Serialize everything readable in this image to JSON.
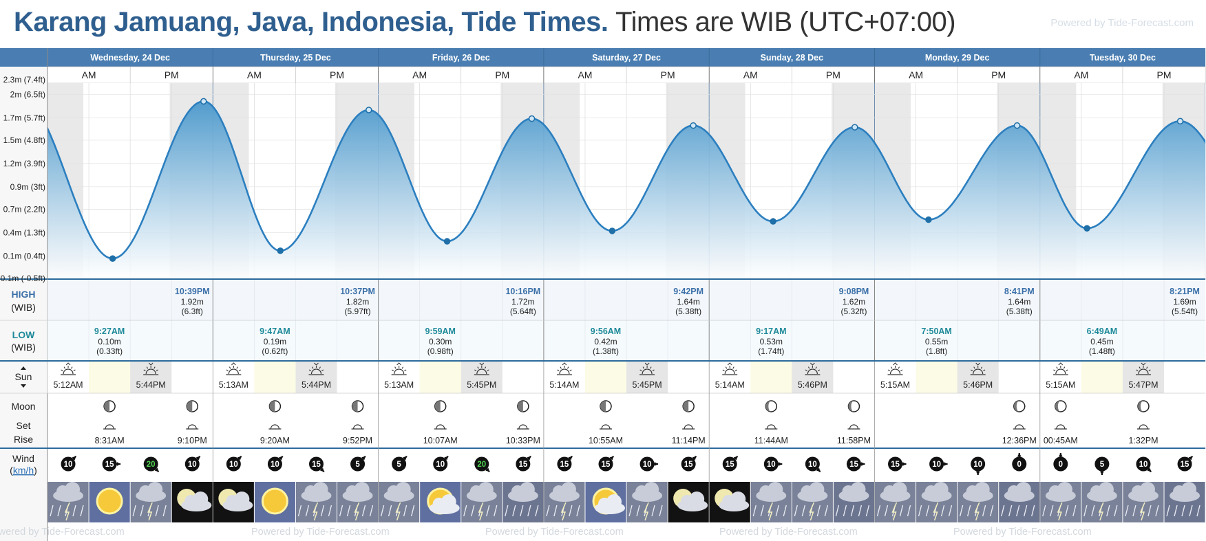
{
  "title": {
    "location": "Karang Jamuang, Java, Indonesia, Tide Times.",
    "timezone_note": "Times are WIB (UTC+07:00)",
    "powered_by": "Powered by Tide-Forecast.com"
  },
  "colors": {
    "header_blue": "#4a7eb2",
    "tide_line": "#2c7fbf",
    "tide_fill_top": "#4a98cc",
    "tide_fill_bottom": "#ffffff",
    "high_label": "#3a6fa8",
    "low_label": "#1e8a99",
    "night_band": "#e9e9e9",
    "sun_band": "#fcfbe5"
  },
  "labels": {
    "am": "AM",
    "pm": "PM",
    "high": "HIGH",
    "low": "LOW",
    "tz": "(WIB)",
    "sun": "Sun",
    "moon": "Moon",
    "set": "Set",
    "rise": "Rise",
    "wind": "Wind",
    "wind_unit": "km/h"
  },
  "chart_data": {
    "type": "area",
    "ylabel": "",
    "y_ticks": [
      "2m (6.5ft)",
      "1.7m (5.7ft)",
      "1.5m (4.8ft)",
      "1.2m (3.9ft)",
      "0.9m (3ft)",
      "0.7m (2.2ft)",
      "0.4m (1.3ft)",
      "0.1m (0.4ft)",
      "-0.1m (-0.5ft)"
    ],
    "y_tick_values": [
      2.0,
      1.73,
      1.47,
      1.2,
      0.93,
      0.67,
      0.4,
      0.13,
      -0.13
    ],
    "ylim": [
      -0.13,
      2.13
    ],
    "days": [
      "Wednesday, 24 Dec",
      "Thursday, 25 Dec",
      "Friday, 26 Dec",
      "Saturday, 27 Dec",
      "Sunday, 28 Dec",
      "Monday, 29 Dec",
      "Tuesday, 30 Dec"
    ],
    "extremes": [
      {
        "day": 0,
        "type": "low",
        "time": "9:27AM",
        "m": "0.10m",
        "ft": "(0.33ft)",
        "height": 0.1,
        "hour": 9.45
      },
      {
        "day": 0,
        "type": "high",
        "time": "10:39PM",
        "m": "1.92m",
        "ft": "(6.3ft)",
        "height": 1.92,
        "hour": 22.65
      },
      {
        "day": 1,
        "type": "low",
        "time": "9:47AM",
        "m": "0.19m",
        "ft": "(0.62ft)",
        "height": 0.19,
        "hour": 33.78
      },
      {
        "day": 1,
        "type": "high",
        "time": "10:37PM",
        "m": "1.82m",
        "ft": "(5.97ft)",
        "height": 1.82,
        "hour": 46.62
      },
      {
        "day": 2,
        "type": "low",
        "time": "9:59AM",
        "m": "0.30m",
        "ft": "(0.98ft)",
        "height": 0.3,
        "hour": 57.98
      },
      {
        "day": 2,
        "type": "high",
        "time": "10:16PM",
        "m": "1.72m",
        "ft": "(5.64ft)",
        "height": 1.72,
        "hour": 70.27
      },
      {
        "day": 3,
        "type": "low",
        "time": "9:56AM",
        "m": "0.42m",
        "ft": "(1.38ft)",
        "height": 0.42,
        "hour": 81.93
      },
      {
        "day": 3,
        "type": "high",
        "time": "9:42PM",
        "m": "1.64m",
        "ft": "(5.38ft)",
        "height": 1.64,
        "hour": 93.7
      },
      {
        "day": 4,
        "type": "low",
        "time": "9:17AM",
        "m": "0.53m",
        "ft": "(1.74ft)",
        "height": 0.53,
        "hour": 105.28
      },
      {
        "day": 4,
        "type": "high",
        "time": "9:08PM",
        "m": "1.62m",
        "ft": "(5.32ft)",
        "height": 1.62,
        "hour": 117.13
      },
      {
        "day": 5,
        "type": "low",
        "time": "7:50AM",
        "m": "0.55m",
        "ft": "(1.8ft)",
        "height": 0.55,
        "hour": 127.83
      },
      {
        "day": 5,
        "type": "high",
        "time": "8:41PM",
        "m": "1.64m",
        "ft": "(5.38ft)",
        "height": 1.64,
        "hour": 140.68
      },
      {
        "day": 6,
        "type": "low",
        "time": "6:49AM",
        "m": "0.45m",
        "ft": "(1.48ft)",
        "height": 0.45,
        "hour": 150.82
      },
      {
        "day": 6,
        "type": "high",
        "time": "8:21PM",
        "m": "1.69m",
        "ft": "(5.54ft)",
        "height": 1.69,
        "hour": 164.35
      }
    ]
  },
  "sun": [
    {
      "rise": "5:12AM",
      "set": "5:44PM",
      "rise_h": 5.2,
      "set_h": 17.73
    },
    {
      "rise": "5:13AM",
      "set": "5:44PM",
      "rise_h": 5.22,
      "set_h": 17.73
    },
    {
      "rise": "5:13AM",
      "set": "5:45PM",
      "rise_h": 5.22,
      "set_h": 17.75
    },
    {
      "rise": "5:14AM",
      "set": "5:45PM",
      "rise_h": 5.23,
      "set_h": 17.75
    },
    {
      "rise": "5:14AM",
      "set": "5:46PM",
      "rise_h": 5.23,
      "set_h": 17.77
    },
    {
      "rise": "5:15AM",
      "set": "5:46PM",
      "rise_h": 5.25,
      "set_h": 17.77
    },
    {
      "rise": "5:15AM",
      "set": "5:47PM",
      "rise_h": 5.25,
      "set_h": 17.78
    }
  ],
  "moon": [
    {
      "slot": 1,
      "time": "8:31AM",
      "kind": "set",
      "phase": "first-quarter"
    },
    {
      "slot": 3,
      "time": "9:10PM",
      "kind": "rise",
      "phase": "first-quarter"
    },
    {
      "slot": 5,
      "time": "9:20AM",
      "kind": "set",
      "phase": "first-quarter"
    },
    {
      "slot": 7,
      "time": "9:52PM",
      "kind": "rise",
      "phase": "first-quarter"
    },
    {
      "slot": 9,
      "time": "10:07AM",
      "kind": "set",
      "phase": "first-quarter"
    },
    {
      "slot": 11,
      "time": "10:33PM",
      "kind": "rise",
      "phase": "first-quarter"
    },
    {
      "slot": 13,
      "time": "10:55AM",
      "kind": "set",
      "phase": "first-quarter"
    },
    {
      "slot": 15,
      "time": "11:14PM",
      "kind": "rise",
      "phase": "first-quarter"
    },
    {
      "slot": 17,
      "time": "11:44AM",
      "kind": "set",
      "phase": "waxing-gibbous"
    },
    {
      "slot": 19,
      "time": "11:58PM",
      "kind": "rise",
      "phase": "waxing-gibbous"
    },
    {
      "slot": 23,
      "time": "12:36PM",
      "kind": "set",
      "phase": "waxing-gibbous"
    },
    {
      "slot": 24,
      "time": "00:45AM",
      "kind": "rise",
      "phase": "waxing-gibbous"
    },
    {
      "slot": 26,
      "time": "1:32PM",
      "kind": "set",
      "phase": "waxing-gibbous"
    }
  ],
  "wind": [
    10,
    15,
    20,
    10,
    10,
    10,
    15,
    5,
    5,
    10,
    20,
    15,
    15,
    15,
    10,
    15,
    15,
    10,
    10,
    15,
    15,
    10,
    10,
    0,
    0,
    5,
    10,
    15
  ],
  "wind_dir_deg": [
    45,
    90,
    135,
    45,
    45,
    45,
    135,
    45,
    45,
    45,
    135,
    45,
    45,
    45,
    90,
    45,
    45,
    90,
    135,
    90,
    90,
    90,
    180,
    0,
    0,
    180,
    135,
    45
  ],
  "wind_highlight": [
    2,
    10
  ],
  "weather": [
    "storm",
    "sun",
    "storm",
    "night-cloud",
    "night-cloud",
    "sun",
    "storm",
    "storm",
    "storm",
    "sun-cloud",
    "storm",
    "rain",
    "storm",
    "sun-cloud",
    "storm",
    "night-cloud",
    "night-cloud",
    "storm",
    "storm",
    "rain",
    "storm",
    "storm",
    "storm",
    "rain",
    "storm",
    "storm",
    "storm",
    "rain"
  ]
}
